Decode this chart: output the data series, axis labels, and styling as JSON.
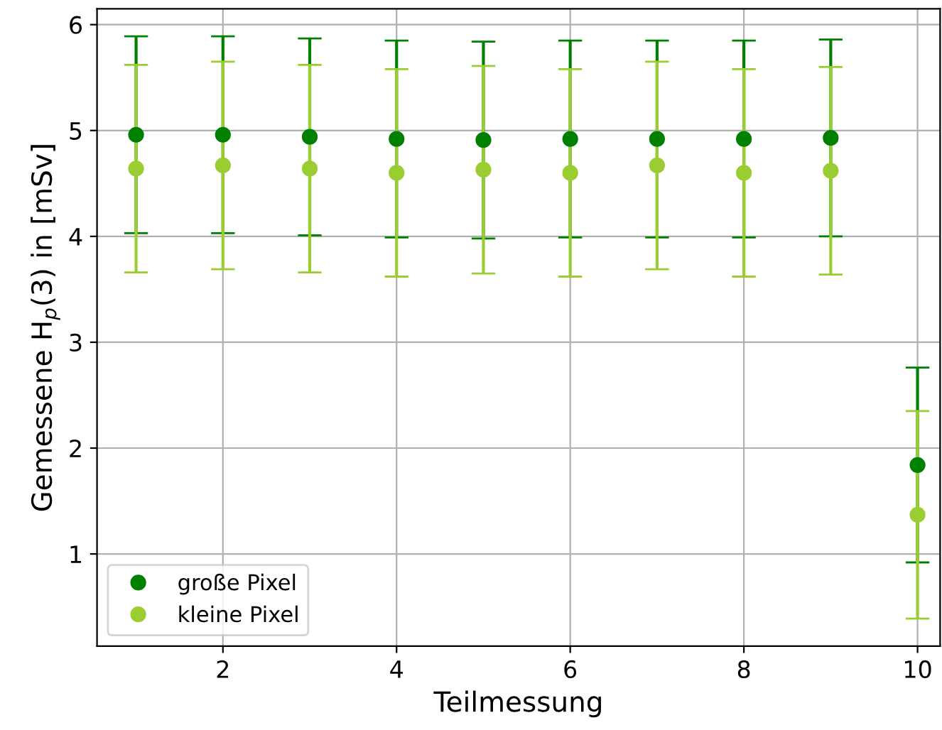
{
  "chart_data": {
    "type": "scatter",
    "xlabel": "Teilmessung",
    "ylabel": "Gemessene H$_{p}$(3) in [mSv]",
    "x": [
      1,
      2,
      3,
      4,
      5,
      6,
      7,
      8,
      9,
      10
    ],
    "series": [
      {
        "name": "große Pixel",
        "color": "#008000",
        "values": [
          4.96,
          4.96,
          4.94,
          4.92,
          4.91,
          4.92,
          4.92,
          4.92,
          4.93,
          1.84
        ],
        "errors": [
          0.93,
          0.93,
          0.93,
          0.93,
          0.93,
          0.93,
          0.93,
          0.93,
          0.93,
          0.92
        ]
      },
      {
        "name": "kleine Pixel",
        "color": "#9acd32",
        "values": [
          4.64,
          4.67,
          4.64,
          4.6,
          4.63,
          4.6,
          4.67,
          4.6,
          4.62,
          1.37
        ],
        "errors": [
          0.98,
          0.98,
          0.98,
          0.98,
          0.98,
          0.98,
          0.98,
          0.98,
          0.98,
          0.98
        ]
      }
    ],
    "xlim": [
      0.55,
      10.26
    ],
    "ylim": [
      0.13,
      6.15
    ],
    "xticks": [
      2,
      4,
      6,
      8,
      10
    ],
    "yticks": [
      1,
      2,
      3,
      4,
      5,
      6
    ],
    "grid": true,
    "legend": "bottom left",
    "marker": "circle"
  }
}
